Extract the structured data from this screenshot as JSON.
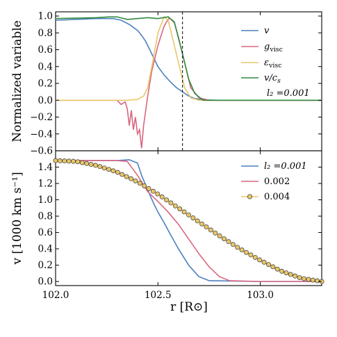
{
  "chart_data": [
    {
      "type": "line",
      "ylabel": "Normalized variable",
      "xlim": [
        102.0,
        103.3
      ],
      "ylim": [
        -0.6,
        1.05
      ],
      "yticks": [
        "−0.6",
        "−0.4",
        "−0.2",
        "0.0",
        "0.2",
        "0.4",
        "0.6",
        "0.8",
        "1.0"
      ],
      "ytick_values": [
        -0.6,
        -0.4,
        -0.2,
        0.0,
        0.2,
        0.4,
        0.6,
        0.8,
        1.0
      ],
      "vline_x": 102.62,
      "legend_position": "right",
      "legend_note": "l₂ =0.001",
      "series": [
        {
          "name": "v",
          "color": "#4c7fbf",
          "x": [
            102.0,
            102.1,
            102.2,
            102.28,
            102.32,
            102.36,
            102.4,
            102.42,
            102.44,
            102.47,
            102.5,
            102.53,
            102.56,
            102.59,
            102.62,
            102.65,
            102.68,
            102.72,
            102.8,
            103.0,
            103.3
          ],
          "y": [
            0.95,
            0.96,
            0.97,
            0.97,
            0.95,
            0.9,
            0.83,
            0.77,
            0.7,
            0.55,
            0.4,
            0.3,
            0.22,
            0.15,
            0.1,
            0.05,
            0.02,
            0.005,
            0.0,
            0.0,
            0.0
          ]
        },
        {
          "name": "g_visc",
          "color": "#d9667f",
          "x": [
            102.0,
            102.3,
            102.32,
            102.34,
            102.35,
            102.36,
            102.37,
            102.38,
            102.39,
            102.4,
            102.41,
            102.42,
            102.43,
            102.45,
            102.47,
            102.5,
            102.53,
            102.555,
            102.58,
            102.6,
            102.63,
            102.66,
            102.7,
            102.75,
            103.0,
            103.3
          ],
          "y": [
            0.0,
            0.0,
            -0.05,
            -0.02,
            -0.1,
            -0.3,
            -0.12,
            -0.35,
            -0.2,
            -0.4,
            -0.35,
            -0.57,
            -0.3,
            0.05,
            0.35,
            0.65,
            0.88,
            0.98,
            0.92,
            0.75,
            0.45,
            0.15,
            0.03,
            0.0,
            0.0,
            0.0
          ]
        },
        {
          "name": "ε_visc",
          "color": "#e8c76a",
          "x": [
            102.0,
            102.35,
            102.4,
            102.43,
            102.45,
            102.47,
            102.5,
            102.53,
            102.55,
            102.57,
            102.6,
            102.63,
            102.66,
            102.7,
            103.3
          ],
          "y": [
            0.0,
            0.0,
            0.01,
            0.05,
            0.15,
            0.4,
            0.8,
            0.99,
            0.95,
            0.75,
            0.45,
            0.15,
            0.03,
            0.0,
            0.0
          ]
        },
        {
          "name": "v/c_s",
          "color": "#2f8a3e",
          "x": [
            102.0,
            102.2,
            102.26,
            102.3,
            102.35,
            102.4,
            102.45,
            102.5,
            102.55,
            102.58,
            102.62,
            102.65,
            102.68,
            102.72,
            102.8,
            103.3
          ],
          "y": [
            0.97,
            0.98,
            0.99,
            0.99,
            0.96,
            0.97,
            0.98,
            0.97,
            0.99,
            0.93,
            0.55,
            0.25,
            0.08,
            0.0,
            0.0,
            0.0
          ]
        }
      ]
    },
    {
      "type": "line",
      "xlabel": "r [R⊙]",
      "ylabel": "v [1000 km s⁻¹]",
      "xlim": [
        102.0,
        103.3
      ],
      "ylim": [
        -0.05,
        1.6
      ],
      "xticks": [
        "102.0",
        "102.5",
        "103.0"
      ],
      "xtick_values": [
        102.0,
        102.5,
        103.0
      ],
      "yticks": [
        "0.0",
        "0.2",
        "0.4",
        "0.6",
        "0.8",
        "1.0",
        "1.2",
        "1.4"
      ],
      "ytick_values": [
        0.0,
        0.2,
        0.4,
        0.6,
        0.8,
        1.0,
        1.2,
        1.4
      ],
      "legend_position": "top-right",
      "series": [
        {
          "name": "l₂ =0.001",
          "color": "#4c7fbf",
          "x": [
            102.0,
            102.3,
            102.36,
            102.38,
            102.4,
            102.42,
            102.45,
            102.48,
            102.5,
            102.53,
            102.56,
            102.6,
            102.65,
            102.7,
            102.75,
            103.0,
            103.3
          ],
          "y": [
            1.48,
            1.48,
            1.49,
            1.47,
            1.45,
            1.3,
            1.12,
            0.95,
            0.85,
            0.72,
            0.58,
            0.4,
            0.2,
            0.06,
            0.01,
            0.0,
            0.0
          ]
        },
        {
          "name": "0.002",
          "color": "#d9667f",
          "x": [
            102.0,
            102.3,
            102.35,
            102.4,
            102.45,
            102.5,
            102.55,
            102.6,
            102.65,
            102.7,
            102.75,
            102.8,
            102.85,
            103.0,
            103.3
          ],
          "y": [
            1.48,
            1.48,
            1.47,
            1.3,
            1.1,
            0.98,
            0.85,
            0.7,
            0.52,
            0.34,
            0.18,
            0.06,
            0.01,
            0.0,
            0.0
          ]
        },
        {
          "name": "0.004",
          "color": "#e8c76a",
          "marker": "circle",
          "x": [
            102.0,
            102.1,
            102.2,
            102.3,
            102.4,
            102.5,
            102.6,
            102.7,
            102.8,
            102.9,
            103.0,
            103.1,
            103.2,
            103.3
          ],
          "y": [
            1.48,
            1.47,
            1.42,
            1.34,
            1.22,
            1.07,
            0.9,
            0.73,
            0.56,
            0.4,
            0.26,
            0.13,
            0.04,
            0.0
          ]
        }
      ]
    }
  ],
  "legend_top": [
    "v",
    "g",
    "visc",
    "ε",
    "visc",
    "v/c",
    "s"
  ]
}
